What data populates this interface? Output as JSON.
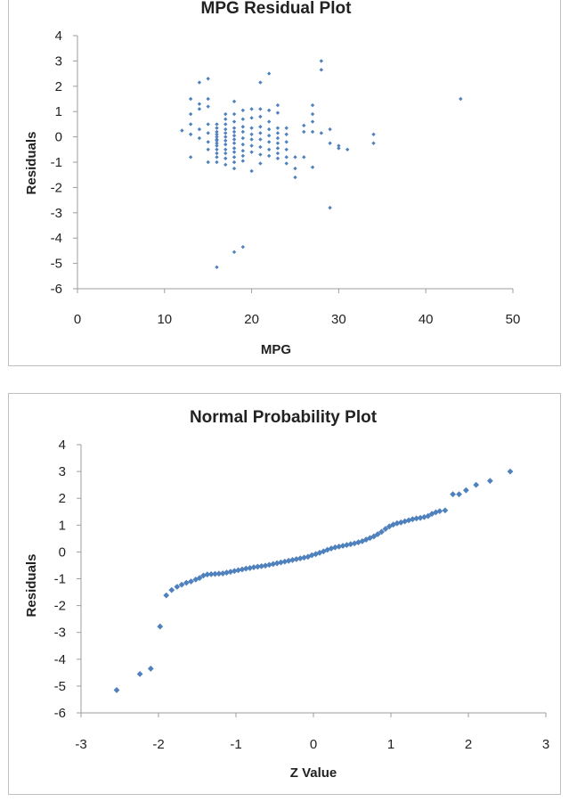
{
  "chart_data": [
    {
      "type": "scatter",
      "title": "MPG  Residual Plot",
      "xlabel": "MPG",
      "ylabel": "Residuals",
      "xlim": [
        0,
        50
      ],
      "ylim": [
        -6,
        4
      ],
      "xticks": [
        "0",
        "10",
        "20",
        "30",
        "40",
        "50"
      ],
      "yticks": [
        "4",
        "3",
        "2",
        "1",
        "0",
        "-1",
        "-2",
        "-3",
        "-4",
        "-5",
        "-6"
      ],
      "marker_color": "#4f81bd",
      "series": [
        {
          "name": "Residuals",
          "points": [
            [
              12,
              0.25
            ],
            [
              13,
              1.5
            ],
            [
              13,
              0.9
            ],
            [
              13,
              0.5
            ],
            [
              13,
              0.1
            ],
            [
              13,
              -0.8
            ],
            [
              14,
              1.3
            ],
            [
              14,
              1.1
            ],
            [
              14,
              2.15
            ],
            [
              14,
              0.3
            ],
            [
              14,
              -0.05
            ],
            [
              15,
              2.3
            ],
            [
              15,
              1.5
            ],
            [
              15,
              1.2
            ],
            [
              15,
              0.5
            ],
            [
              15,
              0.15
            ],
            [
              15,
              -0.2
            ],
            [
              15,
              -0.5
            ],
            [
              15,
              -1.0
            ],
            [
              16,
              0.35
            ],
            [
              16,
              0.2
            ],
            [
              16,
              0.1
            ],
            [
              16,
              0.0
            ],
            [
              16,
              -0.1
            ],
            [
              16,
              -0.25
            ],
            [
              16,
              -0.35
            ],
            [
              16,
              -0.5
            ],
            [
              16,
              -0.65
            ],
            [
              16,
              -0.8
            ],
            [
              16,
              -1.0
            ],
            [
              16,
              -5.15
            ],
            [
              16,
              0.5
            ],
            [
              16,
              -0.15
            ],
            [
              17,
              0.9
            ],
            [
              17,
              0.7
            ],
            [
              17,
              0.5
            ],
            [
              17,
              0.3
            ],
            [
              17,
              0.15
            ],
            [
              17,
              0.0
            ],
            [
              17,
              -0.15
            ],
            [
              17,
              -0.3
            ],
            [
              17,
              -0.5
            ],
            [
              17,
              -0.65
            ],
            [
              17,
              -0.85
            ],
            [
              17,
              -1.1
            ],
            [
              18,
              1.4
            ],
            [
              18,
              0.9
            ],
            [
              18,
              0.6
            ],
            [
              18,
              0.35
            ],
            [
              18,
              0.2
            ],
            [
              18,
              0.05
            ],
            [
              18,
              -0.1
            ],
            [
              18,
              -0.25
            ],
            [
              18,
              -0.45
            ],
            [
              18,
              -0.6
            ],
            [
              18,
              -0.8
            ],
            [
              18,
              -1.0
            ],
            [
              18,
              -1.25
            ],
            [
              18,
              -4.55
            ],
            [
              19,
              1.05
            ],
            [
              19,
              0.7
            ],
            [
              19,
              0.4
            ],
            [
              19,
              0.2
            ],
            [
              19,
              -0.05
            ],
            [
              19,
              -0.3
            ],
            [
              19,
              -0.55
            ],
            [
              19,
              -0.75
            ],
            [
              19,
              -0.95
            ],
            [
              19,
              -4.35
            ],
            [
              20,
              1.1
            ],
            [
              20,
              0.75
            ],
            [
              20,
              0.35
            ],
            [
              20,
              0.1
            ],
            [
              20,
              -0.1
            ],
            [
              20,
              -0.35
            ],
            [
              20,
              -0.6
            ],
            [
              20,
              -1.35
            ],
            [
              21,
              2.15
            ],
            [
              21,
              1.1
            ],
            [
              21,
              0.8
            ],
            [
              21,
              0.4
            ],
            [
              21,
              0.15
            ],
            [
              21,
              -0.1
            ],
            [
              21,
              -0.4
            ],
            [
              21,
              -0.7
            ],
            [
              21,
              -1.05
            ],
            [
              22,
              2.5
            ],
            [
              22,
              1.05
            ],
            [
              22,
              0.6
            ],
            [
              22,
              0.3
            ],
            [
              22,
              0.05
            ],
            [
              22,
              -0.2
            ],
            [
              22,
              -0.5
            ],
            [
              22,
              -0.75
            ],
            [
              23,
              1.25
            ],
            [
              23,
              0.95
            ],
            [
              23,
              0.35
            ],
            [
              23,
              0.15
            ],
            [
              23,
              -0.05
            ],
            [
              23,
              -0.25
            ],
            [
              23,
              -0.45
            ],
            [
              23,
              -0.65
            ],
            [
              23,
              -0.85
            ],
            [
              24,
              0.35
            ],
            [
              24,
              0.1
            ],
            [
              24,
              -0.2
            ],
            [
              24,
              -0.5
            ],
            [
              24,
              -0.8
            ],
            [
              24,
              -1.05
            ],
            [
              25,
              -0.8
            ],
            [
              25,
              -1.25
            ],
            [
              25,
              -1.6
            ],
            [
              26,
              0.45
            ],
            [
              26,
              0.2
            ],
            [
              26,
              -0.8
            ],
            [
              27,
              1.25
            ],
            [
              27,
              0.9
            ],
            [
              27,
              0.6
            ],
            [
              27,
              0.2
            ],
            [
              27,
              -1.2
            ],
            [
              28,
              3.0
            ],
            [
              28,
              2.65
            ],
            [
              28,
              0.15
            ],
            [
              29,
              0.3
            ],
            [
              29,
              -0.25
            ],
            [
              29,
              -2.8
            ],
            [
              30,
              -0.35
            ],
            [
              30,
              -0.45
            ],
            [
              31,
              -0.5
            ],
            [
              34,
              0.1
            ],
            [
              34,
              -0.25
            ],
            [
              44,
              1.5
            ]
          ]
        }
      ]
    },
    {
      "type": "scatter",
      "title": "Normal Probability Plot",
      "xlabel": "Z Value",
      "ylabel": "Residuals",
      "xlim": [
        -3,
        3
      ],
      "ylim": [
        -6,
        4
      ],
      "xticks": [
        "-3",
        "-2",
        "-1",
        "0",
        "1",
        "2",
        "3"
      ],
      "yticks": [
        "4",
        "3",
        "2",
        "1",
        "0",
        "-1",
        "-2",
        "-3",
        "-4",
        "-5",
        "-6"
      ],
      "marker_color": "#4f81bd",
      "series": [
        {
          "name": "Residuals",
          "points": [
            [
              -2.54,
              -5.15
            ],
            [
              -2.24,
              -4.55
            ],
            [
              -2.1,
              -4.35
            ],
            [
              -1.98,
              -2.78
            ],
            [
              -1.9,
              -1.62
            ],
            [
              -1.83,
              -1.42
            ],
            [
              -1.76,
              -1.3
            ],
            [
              -1.7,
              -1.22
            ],
            [
              -1.64,
              -1.15
            ],
            [
              -1.58,
              -1.1
            ],
            [
              -1.52,
              -1.03
            ],
            [
              -1.47,
              -0.97
            ],
            [
              -1.42,
              -0.88
            ],
            [
              -1.37,
              -0.84
            ],
            [
              -1.32,
              -0.83
            ],
            [
              -1.27,
              -0.82
            ],
            [
              -1.22,
              -0.81
            ],
            [
              -1.17,
              -0.8
            ],
            [
              -1.12,
              -0.77
            ],
            [
              -1.07,
              -0.74
            ],
            [
              -1.02,
              -0.71
            ],
            [
              -0.97,
              -0.68
            ],
            [
              -0.92,
              -0.65
            ],
            [
              -0.87,
              -0.62
            ],
            [
              -0.82,
              -0.6
            ],
            [
              -0.77,
              -0.57
            ],
            [
              -0.72,
              -0.55
            ],
            [
              -0.67,
              -0.53
            ],
            [
              -0.62,
              -0.51
            ],
            [
              -0.57,
              -0.48
            ],
            [
              -0.52,
              -0.45
            ],
            [
              -0.47,
              -0.42
            ],
            [
              -0.42,
              -0.39
            ],
            [
              -0.37,
              -0.36
            ],
            [
              -0.32,
              -0.33
            ],
            [
              -0.27,
              -0.3
            ],
            [
              -0.22,
              -0.27
            ],
            [
              -0.17,
              -0.24
            ],
            [
              -0.12,
              -0.21
            ],
            [
              -0.07,
              -0.18
            ],
            [
              -0.02,
              -0.12
            ],
            [
              0.03,
              -0.08
            ],
            [
              0.08,
              -0.03
            ],
            [
              0.13,
              0.02
            ],
            [
              0.18,
              0.08
            ],
            [
              0.23,
              0.13
            ],
            [
              0.28,
              0.17
            ],
            [
              0.33,
              0.2
            ],
            [
              0.38,
              0.23
            ],
            [
              0.43,
              0.26
            ],
            [
              0.48,
              0.29
            ],
            [
              0.53,
              0.32
            ],
            [
              0.58,
              0.36
            ],
            [
              0.63,
              0.4
            ],
            [
              0.68,
              0.46
            ],
            [
              0.73,
              0.52
            ],
            [
              0.78,
              0.58
            ],
            [
              0.83,
              0.66
            ],
            [
              0.88,
              0.75
            ],
            [
              0.93,
              0.86
            ],
            [
              0.98,
              0.95
            ],
            [
              1.03,
              1.02
            ],
            [
              1.08,
              1.07
            ],
            [
              1.13,
              1.1
            ],
            [
              1.18,
              1.14
            ],
            [
              1.23,
              1.18
            ],
            [
              1.28,
              1.22
            ],
            [
              1.33,
              1.25
            ],
            [
              1.38,
              1.27
            ],
            [
              1.43,
              1.3
            ],
            [
              1.48,
              1.34
            ],
            [
              1.53,
              1.42
            ],
            [
              1.58,
              1.48
            ],
            [
              1.63,
              1.52
            ],
            [
              1.7,
              1.55
            ],
            [
              1.8,
              2.15
            ],
            [
              1.88,
              2.15
            ],
            [
              1.97,
              2.3
            ],
            [
              2.1,
              2.5
            ],
            [
              2.28,
              2.65
            ],
            [
              2.54,
              3.0
            ]
          ]
        }
      ]
    }
  ]
}
